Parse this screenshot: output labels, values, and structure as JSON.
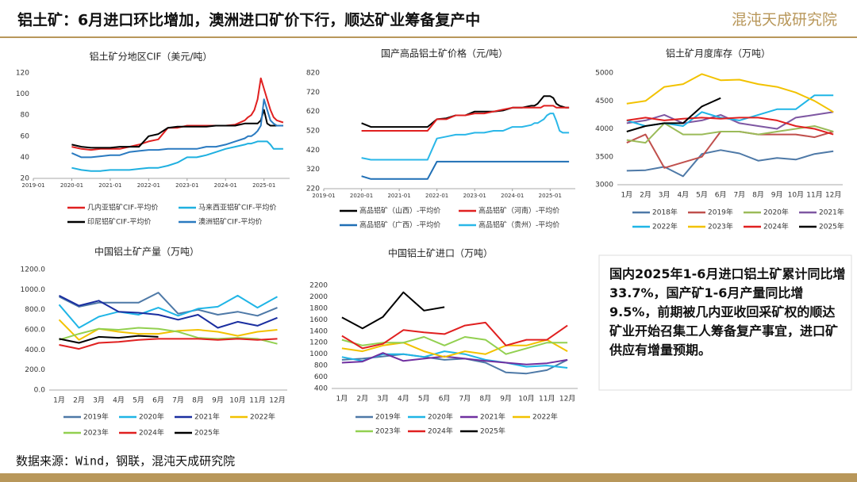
{
  "header": {
    "title": "铝土矿：6月进口环比增加，澳洲进口矿价下行，顺达矿业筹备复产中",
    "logo": "混沌天成研究院"
  },
  "note": "国内2025年1-6月进口铝土矿累计同比增33.7%，国产矿1-6月产量同比增9.5%，前期被几内亚收回采矿权的顺达矿业开始召集工人筹备复产事宜，进口矿供应有增量预期。",
  "source": "数据来源：Wind，钢联，混沌天成研究院",
  "chart_data": [
    {
      "type": "line",
      "title": "铝土矿分地区CIF（美元/吨）",
      "x": [
        "2020-01",
        "2020-04",
        "2020-07",
        "2020-10",
        "2021-01",
        "2021-04",
        "2021-07",
        "2021-10",
        "2022-01",
        "2022-04",
        "2022-07",
        "2022-10",
        "2023-01",
        "2023-04",
        "2023-07",
        "2023-10",
        "2024-01",
        "2024-04",
        "2024-07",
        "2024-08",
        "2024-09",
        "2024-10",
        "2024-11",
        "2024-12",
        "2025-01",
        "2025-02",
        "2025-03",
        "2025-04",
        "2025-05",
        "2025-06",
        "2025-07"
      ],
      "xlim": [
        "2019-01",
        "2025-09"
      ],
      "xticks": [
        "2019-01",
        "2020-01",
        "2021-01",
        "2022-01",
        "2023-01",
        "2024-01",
        "2025-01"
      ],
      "ylim": [
        20,
        120
      ],
      "yticks": [
        20,
        40,
        60,
        80,
        100,
        120
      ],
      "series": [
        {
          "name": "几内亚铝矿CIF-平均价",
          "color": "#e02020",
          "values": [
            50,
            48,
            47,
            48,
            48,
            48,
            50,
            52,
            55,
            57,
            68,
            68,
            70,
            70,
            70,
            70,
            70,
            71,
            75,
            78,
            80,
            85,
            95,
            115,
            105,
            95,
            85,
            78,
            75,
            74,
            73
          ]
        },
        {
          "name": "马来西亚铝矿CIF-平均价",
          "color": "#1fb0e0",
          "values": [
            30,
            28,
            27,
            27,
            28,
            28,
            28,
            29,
            30,
            30,
            32,
            35,
            40,
            40,
            42,
            45,
            48,
            50,
            52,
            53,
            53,
            54,
            55,
            55,
            55,
            55,
            52,
            48,
            48,
            48,
            48
          ]
        },
        {
          "name": "印尼铝矿CIF-平均价",
          "color": "#000000",
          "values": [
            52,
            50,
            49,
            49,
            49,
            50,
            50,
            50,
            60,
            62,
            68,
            69,
            69,
            69,
            69,
            70,
            70,
            70,
            72,
            72,
            72,
            72,
            72,
            75,
            85,
            72,
            70,
            70,
            70,
            70,
            70
          ]
        },
        {
          "name": "澳洲铝矿CIF-平均价",
          "color": "#2a7ac0",
          "values": [
            44,
            40,
            40,
            41,
            42,
            42,
            45,
            46,
            47,
            47,
            48,
            48,
            48,
            48,
            50,
            50,
            52,
            55,
            58,
            60,
            60,
            62,
            65,
            70,
            95,
            85,
            75,
            72,
            70,
            70,
            70
          ]
        }
      ]
    },
    {
      "type": "line",
      "title": "国产高品铝土矿价格（元/吨）",
      "x": [
        "2020-01",
        "2020-04",
        "2020-07",
        "2020-10",
        "2021-01",
        "2021-04",
        "2021-07",
        "2021-10",
        "2022-01",
        "2022-04",
        "2022-07",
        "2022-10",
        "2023-01",
        "2023-04",
        "2023-07",
        "2023-10",
        "2024-01",
        "2024-04",
        "2024-07",
        "2024-08",
        "2024-09",
        "2024-10",
        "2024-11",
        "2024-12",
        "2025-01",
        "2025-02",
        "2025-03",
        "2025-04",
        "2025-05",
        "2025-06",
        "2025-07"
      ],
      "xlim": [
        "2019-01",
        "2025-09"
      ],
      "xticks": [
        "2019-01",
        "2020-01",
        "2021-01",
        "2022-01",
        "2023-01",
        "2024-01",
        "2025-01"
      ],
      "ylim": [
        220,
        820
      ],
      "yticks": [
        220,
        320,
        420,
        520,
        620,
        720,
        820
      ],
      "series": [
        {
          "name": "高品铝矿（山西）-平均价",
          "color": "#000000",
          "values": [
            560,
            540,
            540,
            540,
            540,
            540,
            540,
            540,
            580,
            585,
            600,
            600,
            620,
            620,
            620,
            625,
            640,
            640,
            650,
            650,
            660,
            680,
            700,
            700,
            700,
            690,
            660,
            650,
            645,
            640,
            640
          ]
        },
        {
          "name": "高品铝矿（河南）-平均价",
          "color": "#e02020",
          "values": [
            520,
            520,
            520,
            520,
            520,
            520,
            520,
            520,
            580,
            580,
            600,
            600,
            610,
            610,
            620,
            630,
            640,
            640,
            640,
            640,
            640,
            640,
            650,
            650,
            650,
            650,
            640,
            640,
            640,
            640,
            640
          ]
        },
        {
          "name": "高品铝矿（广西）-平均价",
          "color": "#1f6fb5",
          "values": [
            285,
            270,
            270,
            270,
            270,
            270,
            270,
            270,
            360,
            360,
            360,
            360,
            360,
            360,
            360,
            360,
            360,
            360,
            360,
            360,
            360,
            360,
            360,
            360,
            360,
            360,
            360,
            360,
            360,
            360,
            360
          ]
        },
        {
          "name": "高品铝矿（贵州）-平均价",
          "color": "#2ab7e8",
          "values": [
            380,
            370,
            370,
            370,
            370,
            370,
            370,
            370,
            480,
            490,
            500,
            500,
            510,
            510,
            520,
            520,
            540,
            540,
            550,
            560,
            560,
            570,
            580,
            600,
            610,
            610,
            570,
            520,
            510,
            510,
            510
          ]
        }
      ]
    },
    {
      "type": "line",
      "title": "铝土矿月度库存（万吨）",
      "categories": [
        "1月",
        "2月",
        "3月",
        "4月",
        "5月",
        "6月",
        "7月",
        "8月",
        "9月",
        "10月",
        "11月",
        "12月"
      ],
      "ylim": [
        3000,
        5000
      ],
      "yticks": [
        3000,
        3500,
        4000,
        4500,
        5000
      ],
      "series": [
        {
          "name": "2018年",
          "color": "#4e79a7",
          "values": [
            3250,
            3260,
            3320,
            3150,
            3550,
            3620,
            3560,
            3430,
            3480,
            3450,
            3550,
            3600
          ]
        },
        {
          "name": "2019年",
          "color": "#c0504d",
          "values": [
            3750,
            3900,
            3300,
            3400,
            3500,
            3950,
            3950,
            3900,
            3900,
            3900,
            3850,
            3950
          ]
        },
        {
          "name": "2020年",
          "color": "#9bbb59",
          "values": [
            3800,
            3750,
            4100,
            3900,
            3900,
            3950,
            3950,
            3900,
            3950,
            4000,
            4050,
            3950
          ]
        },
        {
          "name": "2021年",
          "color": "#7e57a2",
          "values": [
            4100,
            4150,
            4250,
            4100,
            4150,
            4250,
            4100,
            4050,
            4000,
            4200,
            4250,
            4300
          ]
        },
        {
          "name": "2022年",
          "color": "#1fb5e6",
          "values": [
            4150,
            4050,
            4100,
            4050,
            4300,
            4200,
            4150,
            4250,
            4350,
            4350,
            4600,
            4600
          ]
        },
        {
          "name": "2023年",
          "color": "#f2c200",
          "values": [
            4450,
            4500,
            4750,
            4800,
            4980,
            4870,
            4880,
            4800,
            4750,
            4650,
            4500,
            4300
          ]
        },
        {
          "name": "2024年",
          "color": "#e02020",
          "values": [
            4150,
            4200,
            4150,
            4180,
            4200,
            4180,
            4200,
            4200,
            4150,
            4050,
            4000,
            3900
          ]
        },
        {
          "name": "2025年",
          "color": "#000000",
          "values": [
            3950,
            4050,
            4100,
            4100,
            4400,
            4550,
            null,
            null,
            null,
            null,
            null,
            null
          ]
        }
      ]
    },
    {
      "type": "line",
      "title": "中国铝土矿产量（万吨）",
      "categories": [
        "1月",
        "2月",
        "3月",
        "4月",
        "5月",
        "6月",
        "7月",
        "8月",
        "9月",
        "10月",
        "11月",
        "12月"
      ],
      "ylim": [
        0,
        1200
      ],
      "yticks": [
        {
          "value": 0,
          "label": "0.0"
        },
        {
          "value": 200,
          "label": "200.0"
        },
        {
          "value": 400,
          "label": "400.0"
        },
        {
          "value": 600,
          "label": "600.0"
        },
        {
          "value": 800,
          "label": "800.0"
        },
        {
          "value": 1000,
          "label": "1000.0"
        },
        {
          "value": 1200,
          "label": "1200.0"
        }
      ],
      "series": [
        {
          "name": "2019年",
          "color": "#4e79a7",
          "values": [
            930,
            830,
            870,
            870,
            870,
            970,
            760,
            800,
            750,
            780,
            740,
            820
          ]
        },
        {
          "name": "2020年",
          "color": "#1fb5e6",
          "values": [
            850,
            620,
            730,
            780,
            750,
            820,
            740,
            810,
            830,
            940,
            820,
            930
          ]
        },
        {
          "name": "2021年",
          "color": "#1a2ea0",
          "values": [
            940,
            840,
            890,
            780,
            770,
            750,
            700,
            750,
            620,
            680,
            640,
            720
          ]
        },
        {
          "name": "2022年",
          "color": "#f2c200",
          "values": [
            700,
            500,
            610,
            580,
            560,
            560,
            590,
            600,
            580,
            540,
            580,
            600
          ]
        },
        {
          "name": "2023年",
          "color": "#92d050",
          "values": [
            500,
            560,
            610,
            600,
            620,
            610,
            580,
            520,
            510,
            520,
            510,
            460
          ]
        },
        {
          "name": "2024年",
          "color": "#e02020",
          "values": [
            450,
            410,
            470,
            480,
            500,
            510,
            510,
            510,
            500,
            510,
            500,
            510
          ]
        },
        {
          "name": "2025年",
          "color": "#000000",
          "values": [
            510,
            470,
            530,
            520,
            540,
            530,
            null,
            null,
            null,
            null,
            null,
            null
          ]
        }
      ]
    },
    {
      "type": "line",
      "title": "中国铝土矿进口（万吨）",
      "categories": [
        "1月",
        "2月",
        "3月",
        "4月",
        "5月",
        "6月",
        "7月",
        "8月",
        "9月",
        "10月",
        "11月",
        "12月"
      ],
      "ylim": [
        400,
        2200
      ],
      "yticks": [
        400,
        600,
        800,
        1000,
        1200,
        1400,
        1600,
        1800,
        2000,
        2200
      ],
      "series": [
        {
          "name": "2019年",
          "color": "#4e79a7",
          "values": [
            900,
            920,
            960,
            1000,
            950,
            900,
            920,
            850,
            680,
            660,
            720,
            900
          ]
        },
        {
          "name": "2020年",
          "color": "#1fb5e6",
          "values": [
            950,
            880,
            1000,
            1000,
            950,
            1050,
            1000,
            900,
            850,
            780,
            800,
            760
          ]
        },
        {
          "name": "2021年",
          "color": "#7030a0",
          "values": [
            850,
            870,
            1020,
            880,
            920,
            960,
            920,
            880,
            850,
            820,
            840,
            900
          ]
        },
        {
          "name": "2022年",
          "color": "#f2c200",
          "values": [
            1100,
            1050,
            1150,
            1200,
            1050,
            950,
            1050,
            1000,
            1150,
            1150,
            1250,
            1050
          ]
        },
        {
          "name": "2023年",
          "color": "#92d050",
          "values": [
            1250,
            1150,
            1200,
            1200,
            1300,
            1150,
            1300,
            1250,
            1000,
            1100,
            1200,
            1200
          ]
        },
        {
          "name": "2024年",
          "color": "#e02020",
          "values": [
            1320,
            1100,
            1180,
            1420,
            1380,
            1350,
            1500,
            1550,
            1150,
            1250,
            1250,
            1500
          ]
        },
        {
          "name": "2025年",
          "color": "#000000",
          "values": [
            1640,
            1450,
            1650,
            2080,
            1760,
            1820,
            null,
            null,
            null,
            null,
            null,
            null
          ]
        }
      ]
    }
  ]
}
